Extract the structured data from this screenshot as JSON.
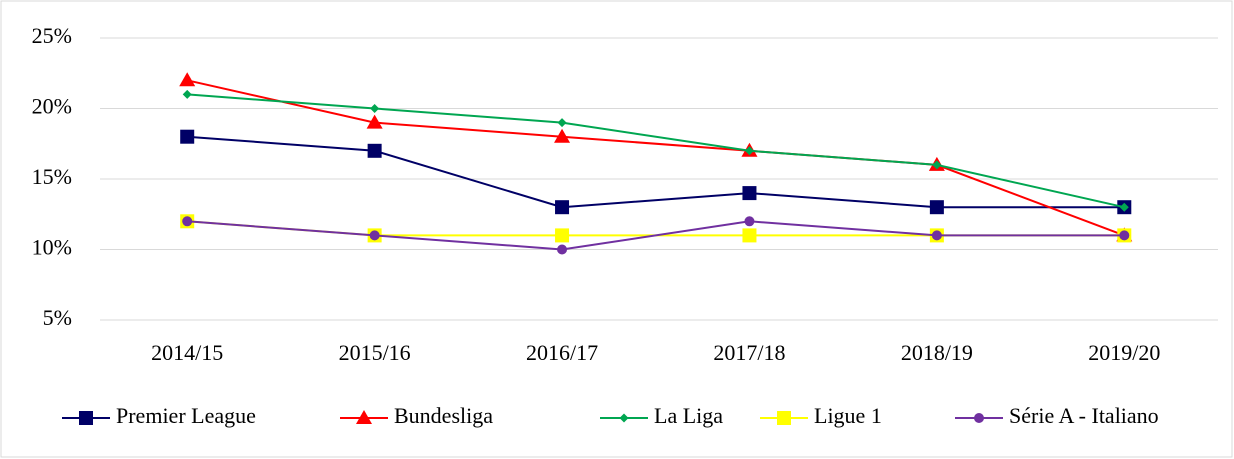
{
  "chart_data": {
    "type": "line",
    "categories": [
      "2014/15",
      "2015/16",
      "2016/17",
      "2017/18",
      "2018/19",
      "2019/20"
    ],
    "series": [
      {
        "name": "Premier League",
        "color": "#000066",
        "marker": "square",
        "values": [
          18,
          17,
          13,
          14,
          13,
          13
        ]
      },
      {
        "name": "Bundesliga",
        "color": "#ff0000",
        "marker": "triangle",
        "values": [
          22,
          19,
          18,
          17,
          16,
          11
        ]
      },
      {
        "name": "La Liga",
        "color": "#00a651",
        "marker": "diamond",
        "values": [
          21,
          20,
          19,
          17,
          16,
          13
        ]
      },
      {
        "name": "Ligue 1",
        "color": "#ffff00",
        "marker": "square",
        "values": [
          12,
          11,
          11,
          11,
          11,
          11
        ]
      },
      {
        "name": "Série A - Italiano",
        "color": "#7030a0",
        "marker": "circle",
        "values": [
          12,
          11,
          10,
          12,
          11,
          11
        ]
      }
    ],
    "ylim": [
      5,
      25
    ],
    "yticks": [
      {
        "value": 5,
        "label": "5%"
      },
      {
        "value": 10,
        "label": "10%"
      },
      {
        "value": 15,
        "label": "15%"
      },
      {
        "value": 20,
        "label": "20%"
      },
      {
        "value": 25,
        "label": "25%"
      }
    ],
    "grid": true,
    "legend": "bottom"
  }
}
